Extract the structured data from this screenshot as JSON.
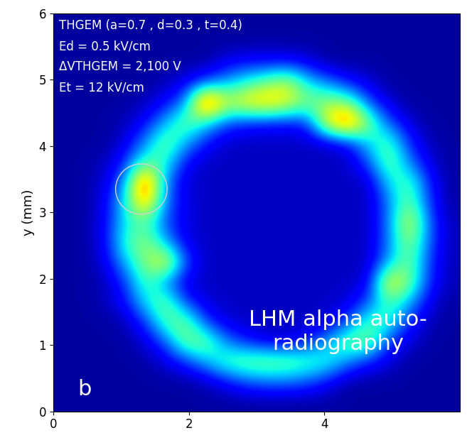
{
  "chart_data": {
    "type": "heatmap",
    "y_label": "y (mm)",
    "annotations": [
      "THGEM (a=0.7 , d=0.3 , t=0.4)",
      "Ed = 0.5 kV/cm",
      "ΔVTHGEM = 2,100 V",
      "Et = 12 kV/cm"
    ],
    "panel_label": "b",
    "overlay_text": "LHM alpha auto-\nradiography",
    "circle": {
      "x": 1.3,
      "y": 3.35,
      "radius": 0.38
    },
    "xlim": [
      0,
      6
    ],
    "ylim": [
      0,
      6
    ],
    "xticks": [
      0,
      2,
      4
    ],
    "yticks": [
      0,
      1,
      2,
      3,
      4,
      5,
      6
    ],
    "color": "jet",
    "cells_range": [
      0,
      10
    ],
    "cells": [
      [
        0.3,
        0.3,
        0.3,
        0.3,
        0.3,
        0.3,
        0.3,
        0.3,
        0.3,
        0.3,
        0.3,
        0.3,
        0.3,
        0.3,
        0.3,
        0.3,
        0.3,
        0.3,
        0.3,
        0.3
      ],
      [
        0.3,
        0.3,
        0.3,
        0.3,
        0.3,
        0.3,
        0.3,
        0.5,
        1.2,
        2.0,
        2.3,
        2.3,
        2.0,
        1.2,
        0.3,
        0.3,
        0.3,
        0.3,
        0.3,
        0.3
      ],
      [
        0.3,
        0.3,
        0.3,
        0.3,
        0.3,
        0.8,
        1.6,
        3,
        4.5,
        5,
        5.2,
        5,
        4.5,
        4,
        2.5,
        1.4,
        0.8,
        0.3,
        0.3,
        0.3
      ],
      [
        0.3,
        0.3,
        0.3,
        0.3,
        0.8,
        2.0,
        5,
        5,
        2.5,
        1.5,
        0.8,
        0.8,
        1.5,
        3,
        5,
        5,
        1.6,
        0.8,
        0.3,
        0.3
      ],
      [
        0.3,
        0.3,
        0.3,
        0.5,
        1.6,
        4.5,
        5,
        1.8,
        0.8,
        0.6,
        0.6,
        0.6,
        0.6,
        0.8,
        2,
        4.5,
        4,
        1.5,
        0.5,
        0.3
      ],
      [
        0.3,
        0.3,
        0.5,
        1.2,
        3.5,
        5,
        1.8,
        0.8,
        0.6,
        0.6,
        0.6,
        0.6,
        0.6,
        0.6,
        0.8,
        2,
        4.5,
        3,
        0.9,
        0.3
      ],
      [
        0.3,
        0.3,
        0.5,
        1.6,
        4.5,
        2.5,
        0.8,
        0.6,
        0.6,
        0.6,
        0.6,
        0.6,
        0.6,
        0.6,
        0.6,
        0.9,
        7,
        5,
        1.5,
        0.5
      ],
      [
        0.3,
        0.3,
        0.8,
        3,
        5,
        7,
        2,
        0.6,
        0.6,
        0.6,
        0.6,
        0.6,
        0.6,
        0.6,
        0.6,
        0.6,
        3,
        5,
        1.6,
        0.5
      ],
      [
        0.3,
        0.3,
        1.0,
        4,
        5.5,
        3,
        0.9,
        0.6,
        0.6,
        0.6,
        0.6,
        0.6,
        0.6,
        0.6,
        0.6,
        0.6,
        2.5,
        5.5,
        2,
        0.5
      ],
      [
        0.3,
        0.3,
        1.0,
        3.5,
        4.5,
        2,
        0.9,
        0.6,
        0.6,
        0.6,
        0.6,
        0.6,
        0.6,
        0.6,
        0.6,
        0.6,
        2.5,
        6.5,
        2,
        0.5
      ],
      [
        0.3,
        0.3,
        0.9,
        3.5,
        8,
        2.5,
        0.9,
        0.6,
        0.6,
        0.6,
        0.6,
        0.6,
        0.6,
        0.6,
        0.6,
        0.6,
        2.5,
        5,
        1.6,
        0.3
      ],
      [
        0.3,
        0.3,
        0.8,
        2.5,
        9.5,
        2.5,
        0.8,
        0.6,
        0.6,
        0.6,
        0.6,
        0.6,
        0.6,
        0.6,
        0.6,
        0.6,
        3.5,
        4.5,
        1.4,
        0.3
      ],
      [
        0.3,
        0.3,
        0.5,
        1.5,
        4.5,
        4,
        1.2,
        0.6,
        0.6,
        0.6,
        0.6,
        0.6,
        0.6,
        0.6,
        0.6,
        2,
        5,
        2.5,
        0.8,
        0.3
      ],
      [
        0.3,
        0.3,
        0.3,
        0.8,
        2.5,
        5,
        3,
        1.4,
        0.6,
        0.6,
        0.6,
        0.6,
        0.6,
        0.6,
        1.2,
        3.5,
        4.5,
        1.5,
        0.5,
        0.3
      ],
      [
        0.3,
        0.3,
        0.3,
        0.5,
        1.2,
        3,
        5,
        3.5,
        2,
        1.5,
        1.3,
        1.3,
        1.6,
        7,
        9,
        5,
        2,
        0.8,
        0.3,
        0.3
      ],
      [
        0.3,
        0.3,
        0.3,
        0.3,
        0.5,
        1.2,
        2.5,
        10,
        6,
        7,
        7.5,
        6.5,
        5,
        5.5,
        5,
        2,
        0.8,
        0.3,
        0.3,
        0.3
      ],
      [
        0.3,
        0.3,
        0.3,
        0.3,
        0.3,
        0.5,
        1.0,
        2,
        3,
        4,
        5,
        6,
        3.5,
        2.5,
        1.4,
        0.8,
        0.3,
        0.3,
        0.3,
        0.3
      ],
      [
        0.3,
        0.3,
        0.3,
        0.3,
        0.3,
        0.3,
        0.3,
        0.3,
        1.0,
        1.3,
        1.3,
        1.3,
        1.0,
        0.3,
        0.3,
        0.3,
        0.3,
        0.3,
        0.3,
        0.3
      ],
      [
        0.3,
        0.3,
        0.3,
        0.3,
        0.3,
        0.3,
        0.3,
        0.3,
        0.3,
        0.3,
        0.3,
        0.3,
        0.3,
        0.3,
        0.3,
        0.3,
        0.3,
        0.3,
        0.3,
        0.3
      ],
      [
        0.3,
        0.3,
        0.3,
        0.3,
        0.3,
        0.3,
        0.3,
        0.3,
        0.3,
        0.3,
        0.3,
        0.3,
        0.3,
        0.3,
        0.3,
        0.3,
        0.3,
        0.3,
        0.3,
        0.3
      ]
    ]
  }
}
